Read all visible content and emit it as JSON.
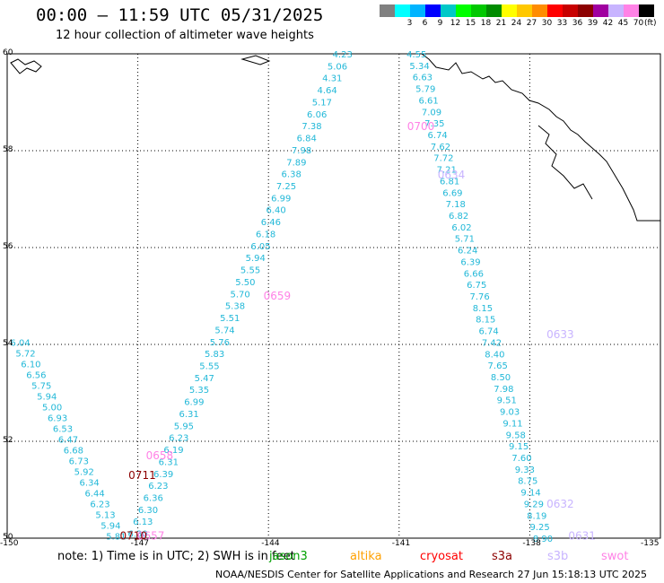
{
  "title": "00:00 — 11:59 UTC 05/31/2025",
  "subtitle": "12 hour collection of altimeter wave heights",
  "legend": {
    "unit": "(ft)",
    "items": [
      {
        "label": "",
        "color": "#808080"
      },
      {
        "label": "3",
        "color": "#00ffff"
      },
      {
        "label": "6",
        "color": "#00b4ff"
      },
      {
        "label": "9",
        "color": "#0000ff"
      },
      {
        "label": "12",
        "color": "#00c8c8"
      },
      {
        "label": "15",
        "color": "#00ff00"
      },
      {
        "label": "18",
        "color": "#00c800"
      },
      {
        "label": "21",
        "color": "#008c00"
      },
      {
        "label": "24",
        "color": "#ffff00"
      },
      {
        "label": "27",
        "color": "#ffc800"
      },
      {
        "label": "30",
        "color": "#ff8c00"
      },
      {
        "label": "33",
        "color": "#ff0000"
      },
      {
        "label": "36",
        "color": "#c80000"
      },
      {
        "label": "39",
        "color": "#8c0000"
      },
      {
        "label": "42",
        "color": "#a000a0"
      },
      {
        "label": "45",
        "color": "#c8b4ff"
      },
      {
        "label": "70",
        "color": "#ff82e6"
      },
      {
        "label": "",
        "color": "#000000"
      }
    ]
  },
  "axes": {
    "lat_ticks": [
      "60",
      "58",
      "56",
      "54",
      "52",
      "50"
    ],
    "lon_ticks": [
      "-150",
      "-147",
      "-144",
      "-141",
      "-138",
      "-135"
    ],
    "lon_range": [
      -150,
      -135
    ],
    "lat_range": [
      50,
      60
    ]
  },
  "tracks": [
    {
      "name": "track-a",
      "color": "#55c8e8",
      "from": [
        -143.0,
        59.95
      ],
      "to": [
        -140.5,
        59.95
      ]
    },
    {
      "name": "track-b",
      "values": [
        "4.23",
        "5.06",
        "4.31",
        "4.64",
        "5.17",
        "6.06",
        "7.38",
        "6.84",
        "7.98",
        "7.89",
        "6.38",
        "7.25",
        "6.99",
        "6.40",
        "6.46",
        "6.18",
        "6.05",
        "5.94",
        "5.55",
        "5.50",
        "5.70",
        "5.38",
        "5.51",
        "5.74",
        "5.76",
        "5.83",
        "5.55",
        "5.47",
        "5.35",
        "6.99",
        "6.31",
        "5.95",
        "6.23",
        "6.19",
        "6.31",
        "6.39",
        "6.23",
        "6.36",
        "6.30",
        "6.13",
        "6.30"
      ],
      "from": [
        -142.3,
        60.0
      ],
      "to": [
        -147.0,
        50.1
      ],
      "color": "#22b8d8",
      "time_labels": [
        {
          "text": "0659",
          "lon": -143.8,
          "lat": 55.0,
          "color": "#ff82e6"
        },
        {
          "text": "0658",
          "lon": -146.5,
          "lat": 51.7,
          "color": "#ff82e6"
        },
        {
          "text": "0657",
          "lon": -146.7,
          "lat": 50.05,
          "color": "#ff82e6"
        }
      ]
    },
    {
      "name": "track-c",
      "values": [
        "4.55",
        "5.34",
        "6.63",
        "5.79",
        "6.61",
        "7.09",
        "7.35",
        "6.74",
        "7.62",
        "7.72",
        "7.21",
        "6.81",
        "6.69",
        "7.18",
        "6.82",
        "6.02",
        "5.71",
        "6.24",
        "6.39",
        "6.66",
        "6.75",
        "7.76",
        "8.15",
        "8.15",
        "6.74",
        "7.42",
        "8.40",
        "7.65",
        "8.50",
        "7.98",
        "9.51",
        "9.03",
        "9.11",
        "9.58",
        "9.15",
        "7.60",
        "9.33",
        "8.75",
        "9.14",
        "9.29",
        "8.19",
        "9.25",
        "8.90"
      ],
      "from": [
        -140.6,
        60.0
      ],
      "to": [
        -137.7,
        50.0
      ],
      "color": "#22b8d8",
      "time_labels": [
        {
          "text": "0700",
          "lon": -140.5,
          "lat": 58.5,
          "color": "#ff82e6"
        },
        {
          "text": "0634",
          "lon": -139.8,
          "lat": 57.5,
          "color": "#c8b4ff"
        },
        {
          "text": "0633",
          "lon": -137.3,
          "lat": 54.2,
          "color": "#c8b4ff"
        },
        {
          "text": "0632",
          "lon": -137.3,
          "lat": 50.7,
          "color": "#c8b4ff"
        },
        {
          "text": "0631",
          "lon": -136.8,
          "lat": 50.05,
          "color": "#c8b4ff"
        }
      ]
    },
    {
      "name": "track-d",
      "values": [
        "6.04",
        "5.72",
        "6.10",
        "6.56",
        "5.75",
        "5.94",
        "5.00",
        "6.93",
        "6.53",
        "6.47",
        "6.68",
        "6.73",
        "5.92",
        "6.34",
        "6.44",
        "6.23",
        "5.13",
        "5.94",
        "5.81"
      ],
      "from": [
        -149.7,
        54.05
      ],
      "to": [
        -147.5,
        50.05
      ],
      "color": "#22b8d8",
      "time_labels": [
        {
          "text": "0711",
          "lon": -146.9,
          "lat": 51.3,
          "color": "#8c0000"
        },
        {
          "text": "0710",
          "lon": -147.1,
          "lat": 50.05,
          "color": "#8c0000"
        }
      ]
    }
  ],
  "note": {
    "text": "note:  1) Time is in UTC;  2) SWH is in feet"
  },
  "satellites": [
    {
      "name": "jason3",
      "color": "#00a000"
    },
    {
      "name": "altika",
      "color": "#ffa000"
    },
    {
      "name": "cryosat",
      "color": "#ff0000"
    },
    {
      "name": "s3a",
      "color": "#8c0000"
    },
    {
      "name": "s3b",
      "color": "#c8b4ff"
    },
    {
      "name": "swot",
      "color": "#ff82e6"
    }
  ],
  "footer": "NOAA/NESDIS Center for Satellite Applications and Research    27 Jun 15:18:13 UTC 2025"
}
